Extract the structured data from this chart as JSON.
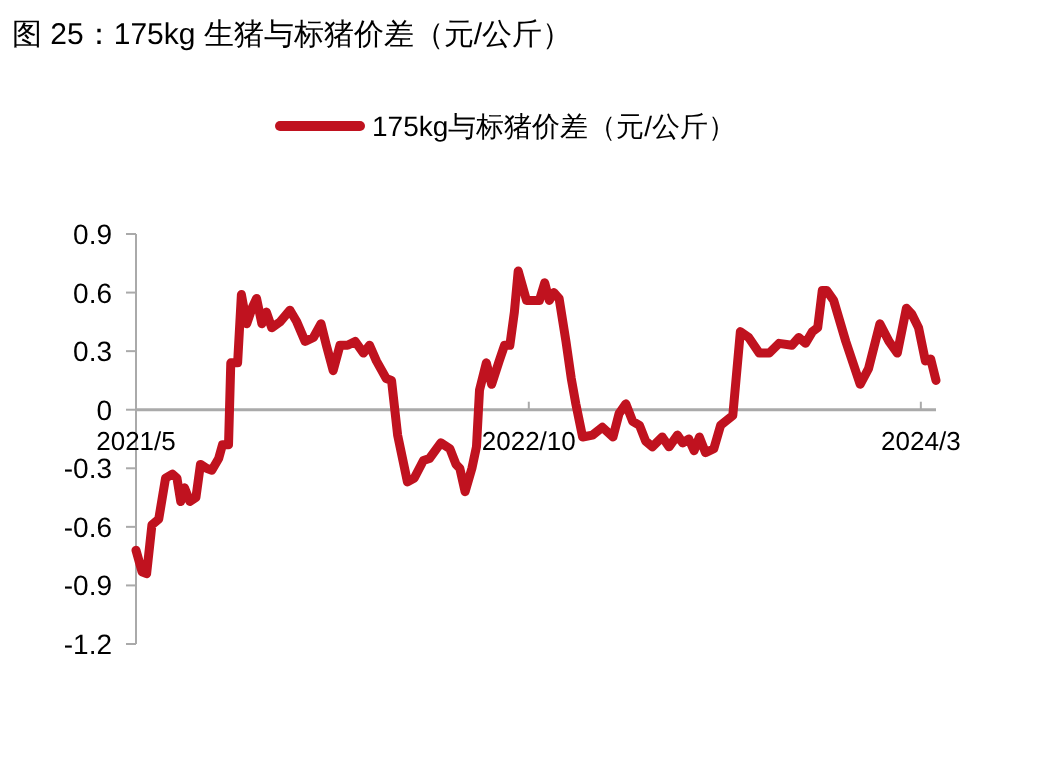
{
  "chart_data": {
    "type": "line",
    "title": "图 25：175kg 生猪与标猪价差（元/公斤）",
    "x": [
      "2021-05-01",
      "2021-05-09",
      "2021-05-15",
      "2021-05-22",
      "2021-05-31",
      "2021-06-09",
      "2021-06-18",
      "2021-06-24",
      "2021-06-29",
      "2021-07-04",
      "2021-07-11",
      "2021-07-19",
      "2021-07-25",
      "2021-08-02",
      "2021-08-09",
      "2021-08-18",
      "2021-08-23",
      "2021-08-31",
      "2021-09-03",
      "2021-09-12",
      "2021-09-17",
      "2021-09-24",
      "2021-10-01",
      "2021-10-07",
      "2021-10-14",
      "2021-10-20",
      "2021-10-27",
      "2021-11-07",
      "2021-11-20",
      "2021-11-29",
      "2021-12-10",
      "2021-12-21",
      "2021-12-31",
      "2022-01-07",
      "2022-01-16",
      "2022-01-25",
      "2022-02-04",
      "2022-02-14",
      "2022-02-25",
      "2022-03-05",
      "2022-03-14",
      "2022-03-27",
      "2022-04-03",
      "2022-04-11",
      "2022-04-24",
      "2022-05-03",
      "2022-05-15",
      "2022-05-23",
      "2022-06-07",
      "2022-06-19",
      "2022-06-27",
      "2022-07-02",
      "2022-07-09",
      "2022-07-18",
      "2022-07-24",
      "2022-07-28",
      "2022-08-06",
      "2022-08-13",
      "2022-08-23",
      "2022-08-30",
      "2022-09-06",
      "2022-09-12",
      "2022-09-17",
      "2022-09-28",
      "2022-10-15",
      "2022-10-22",
      "2022-10-28",
      "2022-11-03",
      "2022-11-10",
      "2022-11-19",
      "2022-11-26",
      "2022-12-02",
      "2022-12-11",
      "2022-12-24",
      "2023-01-06",
      "2023-01-20",
      "2023-01-28",
      "2023-02-06",
      "2023-02-15",
      "2023-02-24",
      "2023-03-04",
      "2023-03-13",
      "2023-03-26",
      "2023-04-04",
      "2023-04-15",
      "2023-04-22",
      "2023-04-30",
      "2023-05-07",
      "2023-05-14",
      "2023-05-22",
      "2023-06-02",
      "2023-06-11",
      "2023-06-27",
      "2023-07-07",
      "2023-07-18",
      "2023-08-01",
      "2023-08-14",
      "2023-08-27",
      "2023-09-13",
      "2023-09-22",
      "2023-10-01",
      "2023-10-10",
      "2023-10-17",
      "2023-10-23",
      "2023-10-29",
      "2023-11-07",
      "2023-11-23",
      "2023-12-12",
      "2023-12-23",
      "2024-01-07",
      "2024-01-19",
      "2024-01-30",
      "2024-02-11",
      "2024-02-18",
      "2024-02-27",
      "2024-03-07",
      "2024-03-14",
      "2024-03-21"
    ],
    "series": [
      {
        "name": "175kg与标猪价差（元/公斤）",
        "color": "#c0121f",
        "values": [
          -0.72,
          -0.83,
          -0.84,
          -0.59,
          -0.56,
          -0.35,
          -0.33,
          -0.35,
          -0.47,
          -0.4,
          -0.47,
          -0.45,
          -0.28,
          -0.3,
          -0.31,
          -0.25,
          -0.18,
          -0.18,
          0.24,
          0.24,
          0.59,
          0.44,
          0.52,
          0.57,
          0.44,
          0.5,
          0.42,
          0.45,
          0.51,
          0.45,
          0.35,
          0.37,
          0.44,
          0.33,
          0.2,
          0.33,
          0.33,
          0.35,
          0.29,
          0.33,
          0.25,
          0.16,
          0.15,
          -0.13,
          -0.37,
          -0.35,
          -0.26,
          -0.25,
          -0.17,
          -0.2,
          -0.28,
          -0.3,
          -0.42,
          -0.3,
          -0.19,
          0.1,
          0.24,
          0.13,
          0.25,
          0.33,
          0.33,
          0.5,
          0.71,
          0.56,
          0.56,
          0.65,
          0.56,
          0.6,
          0.57,
          0.35,
          0.16,
          0.03,
          -0.14,
          -0.13,
          -0.09,
          -0.14,
          -0.02,
          0.03,
          -0.06,
          -0.08,
          -0.16,
          -0.19,
          -0.14,
          -0.19,
          -0.13,
          -0.17,
          -0.15,
          -0.21,
          -0.14,
          -0.22,
          -0.2,
          -0.08,
          -0.03,
          0.4,
          0.37,
          0.29,
          0.29,
          0.34,
          0.33,
          0.37,
          0.34,
          0.4,
          0.42,
          0.61,
          0.61,
          0.56,
          0.35,
          0.13,
          0.21,
          0.44,
          0.35,
          0.29,
          0.52,
          0.49,
          0.42,
          0.25,
          0.26,
          0.15
        ]
      }
    ],
    "xlim": [
      "2021-05-01",
      "2024-03-21"
    ],
    "xticks": [
      {
        "value": "2021-05-01",
        "label": "2021/5"
      },
      {
        "value": "2022-10-01",
        "label": "2022/10"
      },
      {
        "value": "2024-03-01",
        "label": "2024/3"
      }
    ],
    "ylim": [
      -1.2,
      0.9
    ],
    "yticks": [
      {
        "value": -1.2,
        "label": "-1.2"
      },
      {
        "value": -0.9,
        "label": "-0.9"
      },
      {
        "value": -0.6,
        "label": "-0.6"
      },
      {
        "value": -0.3,
        "label": "-0.3"
      },
      0,
      0.3,
      0.6,
      0.9
    ],
    "legend": "top",
    "marker": "none",
    "line_style": "solid"
  }
}
